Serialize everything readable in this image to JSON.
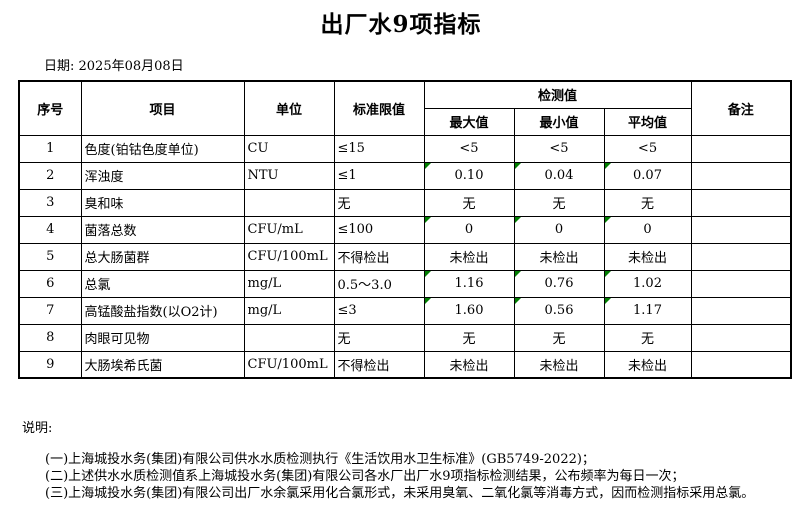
{
  "title": "出厂水9项指标",
  "date_label": "日期: 2025年08月08日",
  "colors": {
    "background": "#FFFFFF",
    "text": "#000000",
    "border": "#000000",
    "flag_green": "#007D00"
  },
  "table": {
    "headers": {
      "no": "序号",
      "item": "项目",
      "unit": "单位",
      "limit": "标准限值",
      "detection": "检测值",
      "max": "最大值",
      "min": "最小值",
      "avg": "平均值",
      "remark": "备注"
    },
    "rows": [
      {
        "no": "1",
        "item": "色度(铂钴色度单位)",
        "unit": "CU",
        "limit": "≤15",
        "max": "<5",
        "min": "<5",
        "avg": "<5",
        "remark": "",
        "flagged": false
      },
      {
        "no": "2",
        "item": "浑浊度",
        "unit": "NTU",
        "limit": "≤1",
        "max": "0.10",
        "min": "0.04",
        "avg": "0.07",
        "remark": "",
        "flagged": true
      },
      {
        "no": "3",
        "item": "臭和味",
        "unit": "",
        "limit": "无",
        "max": "无",
        "min": "无",
        "avg": "无",
        "remark": "",
        "flagged": false
      },
      {
        "no": "4",
        "item": "菌落总数",
        "unit": "CFU/mL",
        "limit": "≤100",
        "max": "0",
        "min": "0",
        "avg": "0",
        "remark": "",
        "flagged": true
      },
      {
        "no": "5",
        "item": "总大肠菌群",
        "unit": "CFU/100mL",
        "limit": "不得检出",
        "max": "未检出",
        "min": "未检出",
        "avg": "未检出",
        "remark": "",
        "flagged": false
      },
      {
        "no": "6",
        "item": "总氯",
        "unit": "mg/L",
        "limit": "0.5～3.0",
        "max": "1.16",
        "min": "0.76",
        "avg": "1.02",
        "remark": "",
        "flagged": true
      },
      {
        "no": "7",
        "item": "高锰酸盐指数(以O2计)",
        "unit": "mg/L",
        "limit": "≤3",
        "max": "1.60",
        "min": "0.56",
        "avg": "1.17",
        "remark": "",
        "flagged": true
      },
      {
        "no": "8",
        "item": "肉眼可见物",
        "unit": "",
        "limit": "无",
        "max": "无",
        "min": "无",
        "avg": "无",
        "remark": "",
        "flagged": false
      },
      {
        "no": "9",
        "item": "大肠埃希氏菌",
        "unit": "CFU/100mL",
        "limit": "不得检出",
        "max": "未检出",
        "min": "未检出",
        "avg": "未检出",
        "remark": "",
        "flagged": false
      }
    ]
  },
  "notes": {
    "label": "说明:",
    "lines": [
      "(一)上海城投水务(集团)有限公司供水水质检测执行《生活饮用水卫生标准》(GB5749-2022)；",
      "(二)上述供水水质检测值系上海城投水务(集团)有限公司各水厂出厂水9项指标检测结果，公布频率为每日一次；",
      "(三)上海城投水务(集团)有限公司出厂水余氯采用化合氯形式，未采用臭氧、二氧化氯等消毒方式，因而检测指标采用总氯。"
    ]
  }
}
